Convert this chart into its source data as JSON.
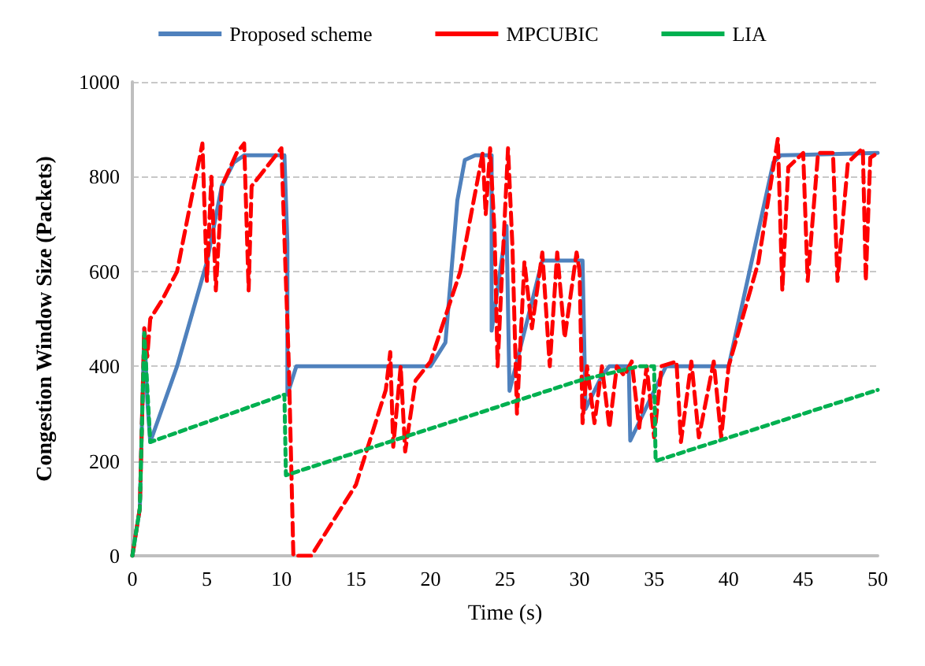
{
  "chart_data": {
    "type": "line",
    "xlabel": "Time (s)",
    "ylabel": "Congestion Window Size (Packets)",
    "xlim": [
      0,
      50
    ],
    "xticks": [
      0,
      5,
      10,
      15,
      20,
      25,
      30,
      35,
      40,
      45,
      50
    ],
    "ylim": [
      0,
      1000
    ],
    "yticks": [
      0,
      200,
      400,
      600,
      800,
      1000
    ],
    "grid": "y",
    "legend": "top",
    "marker": "none",
    "series": [
      {
        "name": "Proposed scheme",
        "color": "#4f81bd",
        "line_style": "solid",
        "x": [
          0,
          0.5,
          0.8,
          1.0,
          1.2,
          3,
          5,
          6,
          6.8,
          7.5,
          10.2,
          10.4,
          10.4,
          11,
          20,
          21,
          21.8,
          22.3,
          23,
          24.1,
          24.1,
          25.1,
          25.3,
          27.5,
          30.2,
          30.4,
          31.5,
          32,
          33.3,
          33.4,
          35.8,
          40,
          43,
          43.5,
          50
        ],
        "values": [
          0,
          100,
          480,
          330,
          240,
          400,
          620,
          780,
          830,
          845,
          845,
          660,
          340,
          400,
          400,
          450,
          750,
          835,
          845,
          845,
          475,
          696,
          348,
          623,
          623,
          310,
          380,
          400,
          400,
          243,
          400,
          400,
          830,
          845,
          850
        ]
      },
      {
        "name": "MPCUBIC",
        "color": "#ff0000",
        "line_style": "dashed",
        "x": [
          0,
          0.5,
          0.8,
          1,
          1.2,
          2,
          3,
          4,
          4.7,
          5,
          5.3,
          5.6,
          6,
          7,
          7.5,
          7.8,
          8,
          10,
          10.2,
          10.5,
          10.8,
          12,
          15,
          17,
          17.3,
          17.5,
          18,
          18.3,
          19,
          20,
          22,
          23.5,
          23.7,
          24,
          24.3,
          24.5,
          25.2,
          25.5,
          25.8,
          26.3,
          26.8,
          27.5,
          28,
          28.5,
          29,
          29.8,
          30,
          30.2,
          30.5,
          31,
          31.5,
          32,
          32.5,
          33,
          33.5,
          34,
          34.5,
          35,
          35.5,
          36.5,
          36.8,
          37.5,
          38,
          39,
          39.5,
          40,
          42,
          43,
          43.3,
          43.6,
          44,
          45,
          45.3,
          46,
          47,
          47.3,
          48,
          49,
          49.2,
          49.5,
          50
        ],
        "values": [
          0,
          100,
          480,
          420,
          500,
          540,
          600,
          760,
          870,
          580,
          800,
          560,
          780,
          850,
          870,
          560,
          780,
          860,
          670,
          400,
          0,
          0,
          150,
          350,
          430,
          230,
          400,
          220,
          370,
          410,
          600,
          850,
          720,
          860,
          680,
          400,
          860,
          650,
          300,
          620,
          480,
          640,
          400,
          640,
          460,
          640,
          600,
          280,
          400,
          280,
          400,
          270,
          400,
          380,
          410,
          270,
          400,
          250,
          400,
          410,
          240,
          410,
          250,
          410,
          250,
          400,
          620,
          820,
          880,
          560,
          820,
          850,
          580,
          850,
          850,
          580,
          830,
          860,
          580,
          840,
          850
        ]
      },
      {
        "name": "LIA",
        "color": "#00b050",
        "line_style": "dotted",
        "x": [
          0,
          0.5,
          0.8,
          1.2,
          10.2,
          10.3,
          30,
          34,
          35,
          35.1,
          50
        ],
        "values": [
          0,
          100,
          470,
          240,
          340,
          170,
          370,
          400,
          400,
          200,
          350
        ]
      }
    ]
  }
}
